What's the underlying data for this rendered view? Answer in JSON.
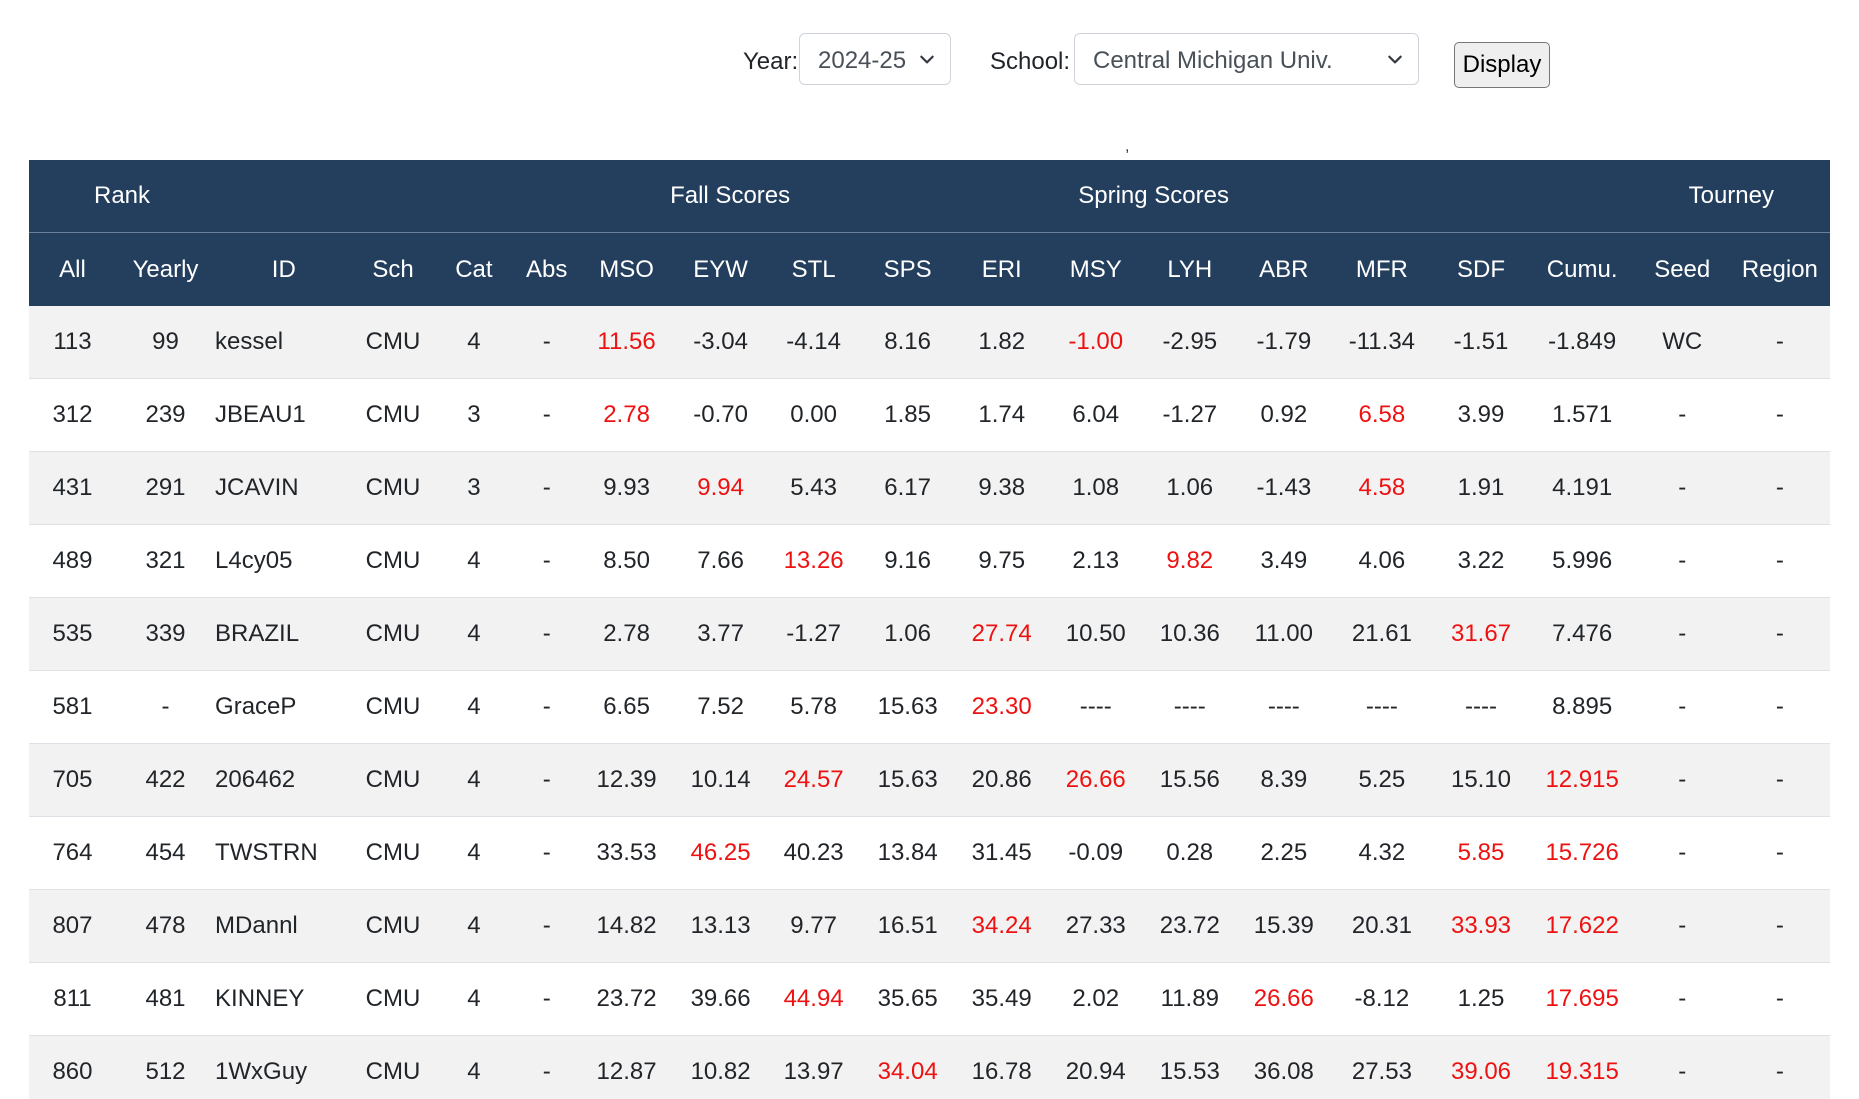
{
  "controls": {
    "year_label": "Year:",
    "year_value": "2024-25",
    "school_label": "School:",
    "school_value": "Central Michigan Univ.",
    "display_label": "Display"
  },
  "stray_mark": ",",
  "table": {
    "group_headers": {
      "rank": "Rank",
      "fall": "Fall Scores",
      "spring": "Spring Scores",
      "tourney": "Tourney"
    },
    "columns": [
      "All",
      "Yearly",
      "ID",
      "Sch",
      "Cat",
      "Abs",
      "MSO",
      "EYW",
      "STL",
      "SPS",
      "ERI",
      "MSY",
      "LYH",
      "ABR",
      "MFR",
      "SDF",
      "Cumu.",
      "Seed",
      "Region"
    ],
    "highlight_color": "#ee1111",
    "rows": [
      {
        "cells": [
          "113",
          "99",
          "kessel",
          "CMU",
          "4",
          "-",
          "11.56",
          "-3.04",
          "-4.14",
          "8.16",
          "1.82",
          "-1.00",
          "-2.95",
          "-1.79",
          "-11.34",
          "-1.51",
          "-1.849",
          "WC",
          "-"
        ],
        "red": [
          6,
          11
        ]
      },
      {
        "cells": [
          "312",
          "239",
          "JBEAU1",
          "CMU",
          "3",
          "-",
          "2.78",
          "-0.70",
          "0.00",
          "1.85",
          "1.74",
          "6.04",
          "-1.27",
          "0.92",
          "6.58",
          "3.99",
          "1.571",
          "-",
          "-"
        ],
        "red": [
          6,
          14
        ]
      },
      {
        "cells": [
          "431",
          "291",
          "JCAVIN",
          "CMU",
          "3",
          "-",
          "9.93",
          "9.94",
          "5.43",
          "6.17",
          "9.38",
          "1.08",
          "1.06",
          "-1.43",
          "4.58",
          "1.91",
          "4.191",
          "-",
          "-"
        ],
        "red": [
          7,
          14
        ]
      },
      {
        "cells": [
          "489",
          "321",
          "L4cy05",
          "CMU",
          "4",
          "-",
          "8.50",
          "7.66",
          "13.26",
          "9.16",
          "9.75",
          "2.13",
          "9.82",
          "3.49",
          "4.06",
          "3.22",
          "5.996",
          "-",
          "-"
        ],
        "red": [
          8,
          12
        ]
      },
      {
        "cells": [
          "535",
          "339",
          "BRAZIL",
          "CMU",
          "4",
          "-",
          "2.78",
          "3.77",
          "-1.27",
          "1.06",
          "27.74",
          "10.50",
          "10.36",
          "11.00",
          "21.61",
          "31.67",
          "7.476",
          "-",
          "-"
        ],
        "red": [
          10,
          15
        ]
      },
      {
        "cells": [
          "581",
          "-",
          "GraceP",
          "CMU",
          "4",
          "-",
          "6.65",
          "7.52",
          "5.78",
          "15.63",
          "23.30",
          "----",
          "----",
          "----",
          "----",
          "----",
          "8.895",
          "-",
          "-"
        ],
        "red": [
          10
        ]
      },
      {
        "cells": [
          "705",
          "422",
          "206462",
          "CMU",
          "4",
          "-",
          "12.39",
          "10.14",
          "24.57",
          "15.63",
          "20.86",
          "26.66",
          "15.56",
          "8.39",
          "5.25",
          "15.10",
          "12.915",
          "-",
          "-"
        ],
        "red": [
          8,
          11,
          16
        ]
      },
      {
        "cells": [
          "764",
          "454",
          "TWSTRN",
          "CMU",
          "4",
          "-",
          "33.53",
          "46.25",
          "40.23",
          "13.84",
          "31.45",
          "-0.09",
          "0.28",
          "2.25",
          "4.32",
          "5.85",
          "15.726",
          "-",
          "-"
        ],
        "red": [
          7,
          15,
          16
        ]
      },
      {
        "cells": [
          "807",
          "478",
          "MDannl",
          "CMU",
          "4",
          "-",
          "14.82",
          "13.13",
          "9.77",
          "16.51",
          "34.24",
          "27.33",
          "23.72",
          "15.39",
          "20.31",
          "33.93",
          "17.622",
          "-",
          "-"
        ],
        "red": [
          10,
          15,
          16
        ]
      },
      {
        "cells": [
          "811",
          "481",
          "KINNEY",
          "CMU",
          "4",
          "-",
          "23.72",
          "39.66",
          "44.94",
          "35.65",
          "35.49",
          "2.02",
          "11.89",
          "26.66",
          "-8.12",
          "1.25",
          "17.695",
          "-",
          "-"
        ],
        "red": [
          8,
          13,
          16
        ]
      },
      {
        "cells": [
          "860",
          "512",
          "1WxGuy",
          "CMU",
          "4",
          "-",
          "12.87",
          "10.82",
          "13.97",
          "34.04",
          "16.78",
          "20.94",
          "15.53",
          "36.08",
          "27.53",
          "39.06",
          "19.315",
          "-",
          "-"
        ],
        "red": [
          9,
          15,
          16
        ]
      }
    ]
  }
}
